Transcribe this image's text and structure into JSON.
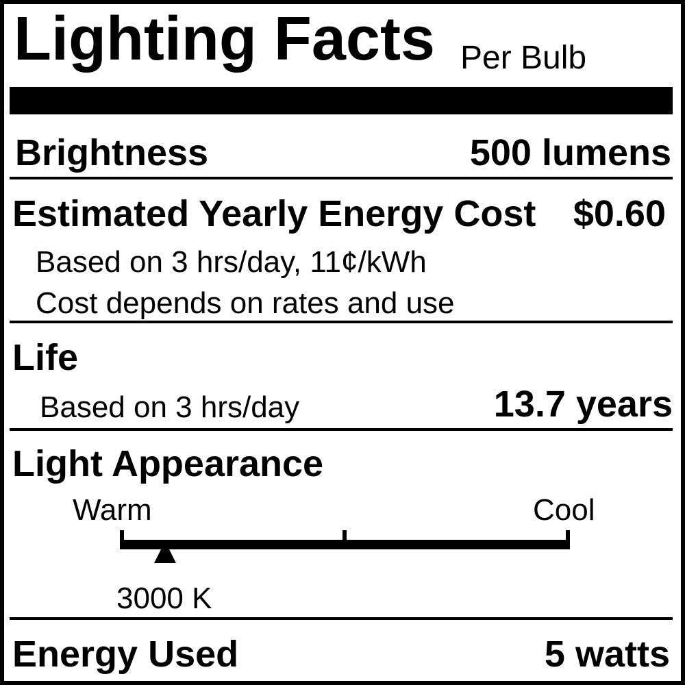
{
  "label": {
    "title": "Lighting Facts",
    "subtitle": "Per Bulb",
    "brightness": {
      "label": "Brightness",
      "value": "500 lumens"
    },
    "cost": {
      "label": "Estimated Yearly Energy Cost",
      "value": "$0.60",
      "note1": "Based on 3 hrs/day, 11¢/kWh",
      "note2": "Cost depends on rates and use"
    },
    "life": {
      "label": "Life",
      "note": "Based on 3 hrs/day",
      "value": "13.7 years"
    },
    "appearance": {
      "label": "Light Appearance",
      "warm": "Warm",
      "cool": "Cool",
      "value": "3000 K",
      "marker_fraction": 0.1
    },
    "energy": {
      "label": "Energy Used",
      "value": "5 watts"
    }
  }
}
